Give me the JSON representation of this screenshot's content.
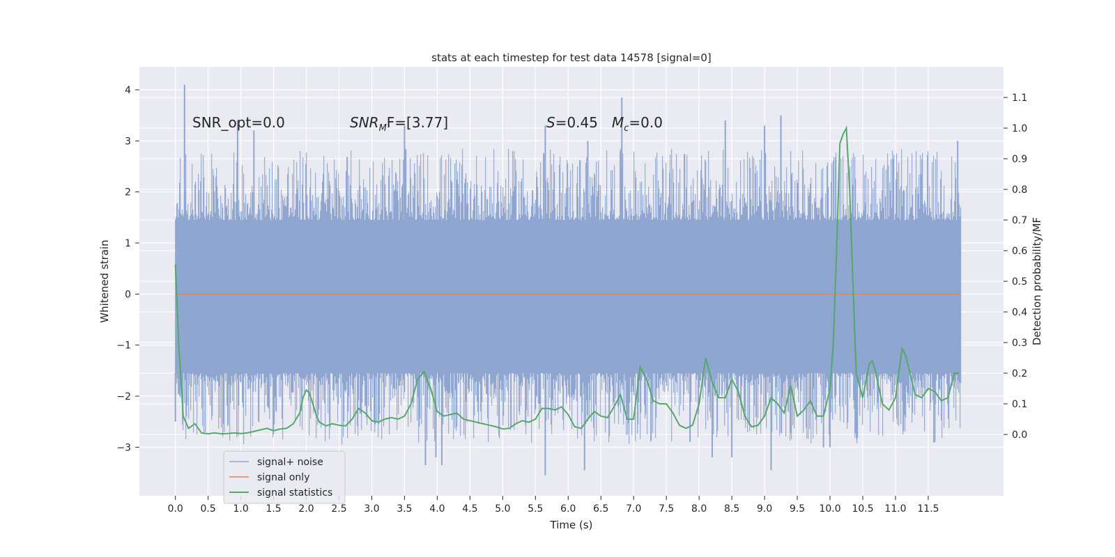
{
  "chart_data": {
    "type": "line",
    "title": "stats at each timestep for test data 14578 [signal=0]",
    "xlabel": "Time (s)",
    "ylabel": "Whitened strain",
    "y2label": "Detection probability/MF",
    "xlim": [
      -0.55,
      12.65
    ],
    "ylim": [
      -3.95,
      4.45
    ],
    "y2lim": [
      -0.2,
      1.2
    ],
    "x_ticks": [
      "0.0",
      "0.5",
      "1.0",
      "1.5",
      "2.0",
      "2.5",
      "3.0",
      "3.5",
      "4.0",
      "4.5",
      "5.0",
      "5.5",
      "6.0",
      "6.5",
      "7.0",
      "7.5",
      "8.0",
      "8.5",
      "9.0",
      "9.5",
      "10.0",
      "10.5",
      "11.0",
      "11.5"
    ],
    "y_ticks": [
      "4",
      "3",
      "2",
      "1",
      "0",
      "−1",
      "−2",
      "−3"
    ],
    "y2_ticks": [
      "1.1",
      "1.0",
      "0.9",
      "0.8",
      "0.7",
      "0.6",
      "0.5",
      "0.4",
      "0.3",
      "0.2",
      "0.1",
      "0.0"
    ],
    "grid": true,
    "legend_position": "lower-left",
    "annotations": {
      "snr_opt": "SNR_opt=0.0",
      "snr_mf_name": "SNR",
      "snr_mf_sub": "M",
      "snr_mf_tail": "F=[3.77]",
      "s_name": "S",
      "s_tail": "=0.45",
      "mc_name": "M",
      "mc_sub": "c",
      "mc_tail": "=0.0"
    },
    "series": [
      {
        "name": "signal+ noise",
        "color": "#8fa6d0",
        "axis": "left",
        "x_range": [
          0.0,
          12.0
        ],
        "envelope_inner": [
          -1.55,
          1.45
        ],
        "spikes_high": [
          [
            0.14,
            4.1
          ],
          [
            0.95,
            3.4
          ],
          [
            1.2,
            3.2
          ],
          [
            3.5,
            3.3
          ],
          [
            5.65,
            3.3
          ],
          [
            6.3,
            3.0
          ],
          [
            6.82,
            3.85
          ],
          [
            8.4,
            3.4
          ],
          [
            9.0,
            3.3
          ],
          [
            9.25,
            3.5
          ],
          [
            11.95,
            3.0
          ]
        ],
        "spikes_low": [
          [
            0.0,
            -2.5
          ],
          [
            3.82,
            -3.35
          ],
          [
            3.98,
            -3.2
          ],
          [
            4.07,
            -3.35
          ],
          [
            5.65,
            -3.55
          ],
          [
            6.25,
            -3.45
          ],
          [
            8.2,
            -3.2
          ],
          [
            8.5,
            -3.2
          ],
          [
            9.1,
            -3.45
          ],
          [
            9.9,
            -3.0
          ],
          [
            10.0,
            -3.0
          ],
          [
            11.6,
            -2.9
          ]
        ]
      },
      {
        "name": "signal only",
        "color": "#dd8452",
        "axis": "left",
        "x": [
          0.0,
          12.0
        ],
        "y": [
          0.0,
          0.0
        ]
      },
      {
        "name": "signal statistics",
        "color": "#55a868",
        "axis": "right",
        "x": [
          0.0,
          0.05,
          0.12,
          0.2,
          0.3,
          0.4,
          0.5,
          0.6,
          0.7,
          0.8,
          0.9,
          1.0,
          1.1,
          1.2,
          1.3,
          1.4,
          1.5,
          1.6,
          1.7,
          1.8,
          1.9,
          1.95,
          2.0,
          2.05,
          2.1,
          2.15,
          2.2,
          2.3,
          2.4,
          2.5,
          2.6,
          2.7,
          2.8,
          2.9,
          3.0,
          3.1,
          3.2,
          3.3,
          3.4,
          3.5,
          3.6,
          3.7,
          3.8,
          3.9,
          4.0,
          4.1,
          4.2,
          4.3,
          4.4,
          4.5,
          4.6,
          4.7,
          4.8,
          4.9,
          5.0,
          5.1,
          5.2,
          5.3,
          5.4,
          5.5,
          5.6,
          5.7,
          5.8,
          5.9,
          6.0,
          6.1,
          6.2,
          6.3,
          6.4,
          6.5,
          6.6,
          6.7,
          6.8,
          6.9,
          7.0,
          7.1,
          7.2,
          7.3,
          7.4,
          7.5,
          7.6,
          7.7,
          7.8,
          7.9,
          8.0,
          8.1,
          8.2,
          8.3,
          8.4,
          8.5,
          8.6,
          8.7,
          8.8,
          8.9,
          9.0,
          9.1,
          9.2,
          9.3,
          9.4,
          9.5,
          9.6,
          9.7,
          9.8,
          9.9,
          10.0,
          10.05,
          10.1,
          10.15,
          10.2,
          10.25,
          10.3,
          10.35,
          10.4,
          10.5,
          10.6,
          10.65,
          10.7,
          10.8,
          10.9,
          11.0,
          11.05,
          11.1,
          11.15,
          11.2,
          11.3,
          11.4,
          11.5,
          11.6,
          11.7,
          11.8,
          11.9,
          11.97
        ],
        "y": [
          0.555,
          0.3,
          0.06,
          0.02,
          0.035,
          0.005,
          0.002,
          0.005,
          0.002,
          0.003,
          0.005,
          0.003,
          0.005,
          0.01,
          0.015,
          0.02,
          0.012,
          0.018,
          0.02,
          0.035,
          0.07,
          0.12,
          0.145,
          0.135,
          0.1,
          0.065,
          0.04,
          0.028,
          0.035,
          0.03,
          0.028,
          0.05,
          0.085,
          0.07,
          0.045,
          0.04,
          0.05,
          0.055,
          0.05,
          0.06,
          0.1,
          0.18,
          0.205,
          0.15,
          0.075,
          0.06,
          0.065,
          0.07,
          0.05,
          0.045,
          0.04,
          0.035,
          0.03,
          0.025,
          0.018,
          0.02,
          0.035,
          0.045,
          0.04,
          0.05,
          0.085,
          0.085,
          0.08,
          0.09,
          0.065,
          0.025,
          0.02,
          0.05,
          0.075,
          0.06,
          0.055,
          0.09,
          0.13,
          0.05,
          0.05,
          0.22,
          0.18,
          0.11,
          0.1,
          0.1,
          0.07,
          0.03,
          0.02,
          0.03,
          0.1,
          0.25,
          0.17,
          0.12,
          0.12,
          0.18,
          0.14,
          0.06,
          0.025,
          0.03,
          0.06,
          0.12,
          0.1,
          0.07,
          0.16,
          0.06,
          0.08,
          0.11,
          0.06,
          0.06,
          0.15,
          0.3,
          0.6,
          0.95,
          0.98,
          1.0,
          0.8,
          0.5,
          0.2,
          0.12,
          0.23,
          0.24,
          0.2,
          0.1,
          0.08,
          0.12,
          0.2,
          0.28,
          0.26,
          0.22,
          0.13,
          0.12,
          0.15,
          0.14,
          0.11,
          0.12,
          0.2,
          0.2
        ]
      }
    ]
  }
}
